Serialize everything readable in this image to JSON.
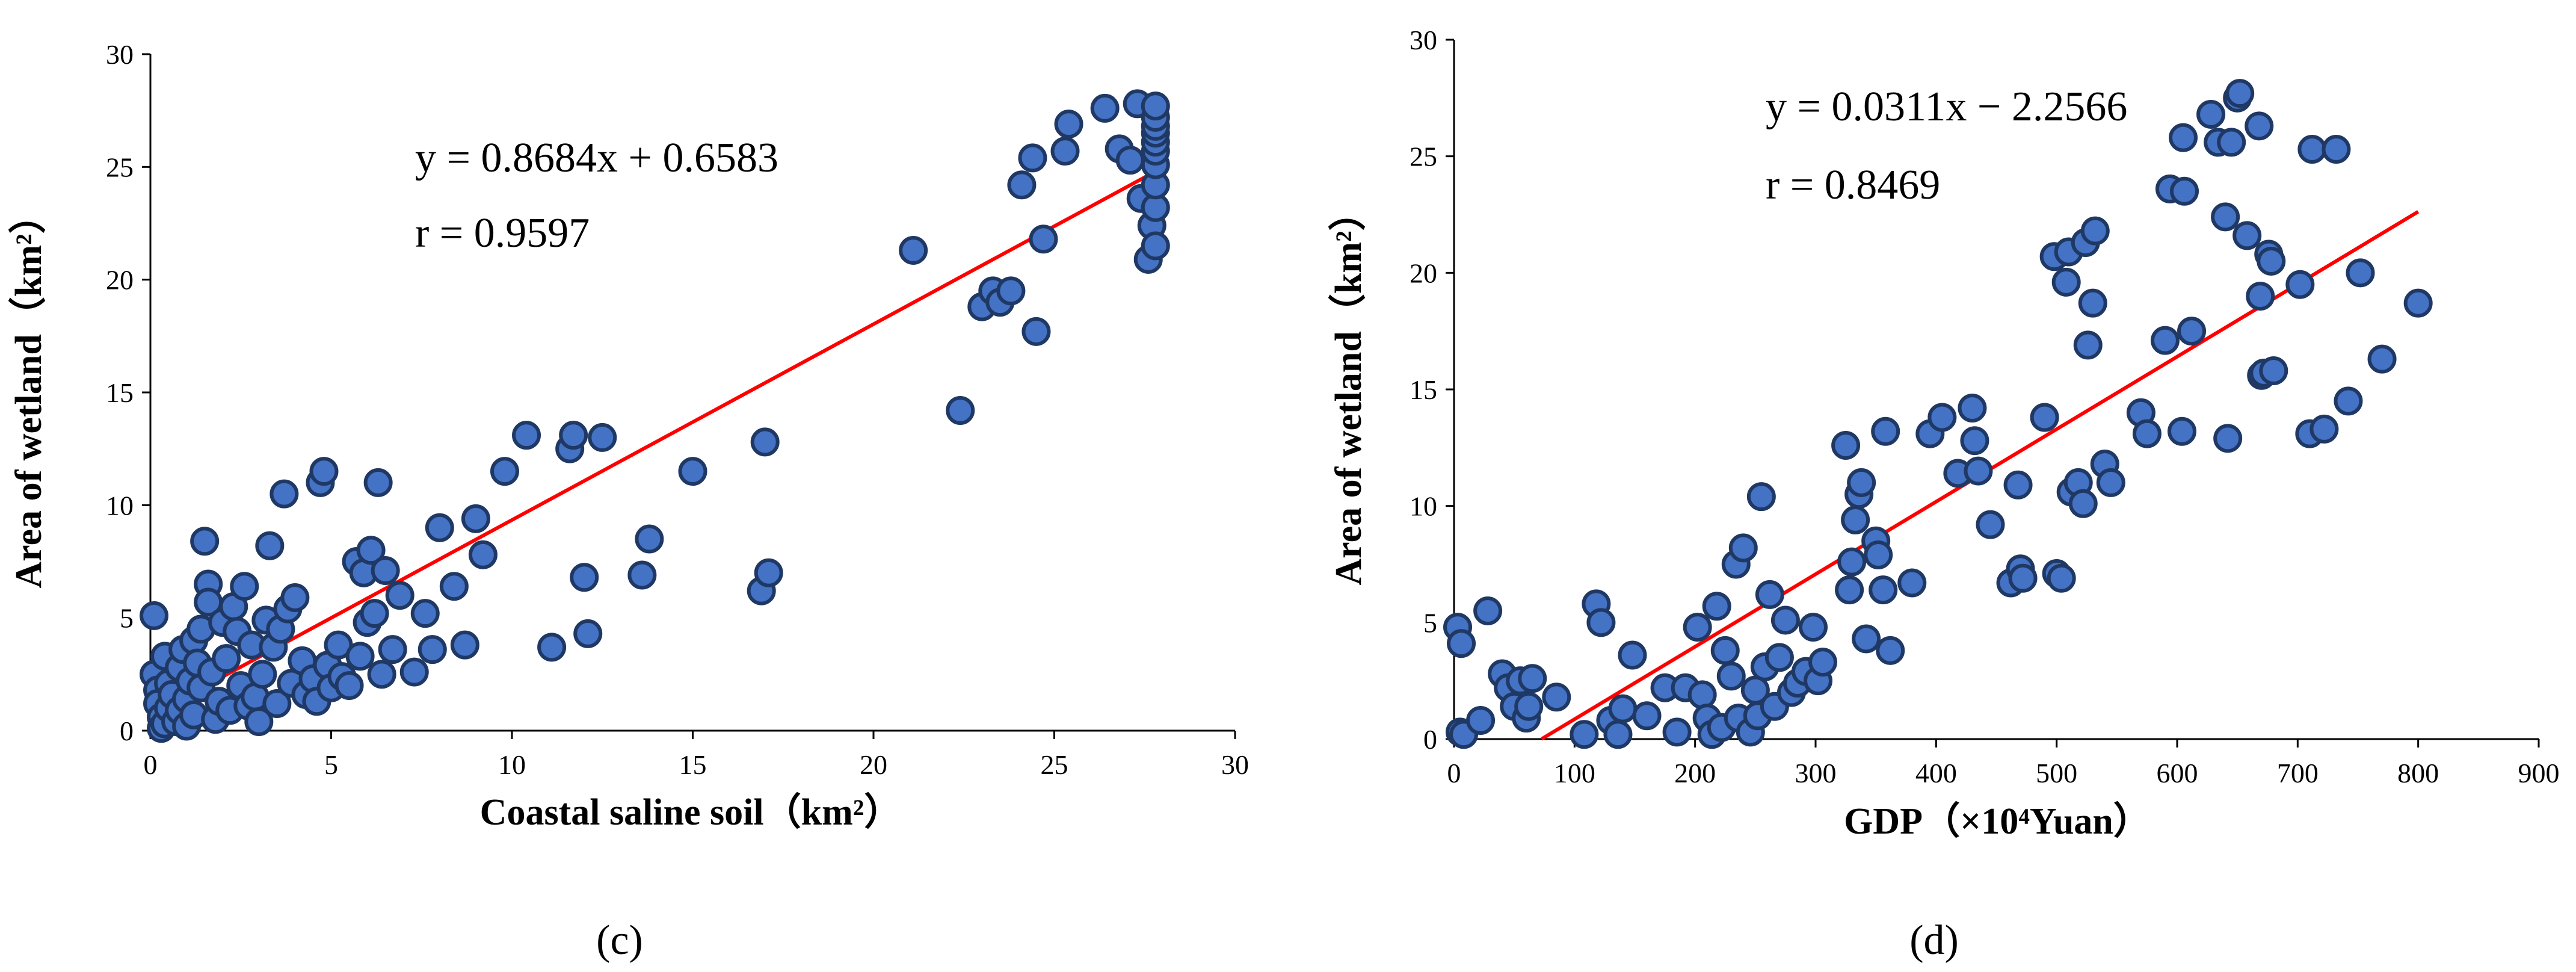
{
  "chart_data": [
    {
      "type": "scatter",
      "panel_label": "(c)",
      "xlabel": "Coastal saline soil（km²）",
      "ylabel": "Area of wetland（km²）",
      "xlim": [
        0,
        30
      ],
      "ylim": [
        0,
        30
      ],
      "xticks": [
        "0",
        "5",
        "10",
        "15",
        "20",
        "25",
        "30"
      ],
      "yticks": [
        "0",
        "5",
        "10",
        "15",
        "20",
        "25",
        "30"
      ],
      "equation": "y = 0.8684x + 0.6583",
      "r_text": "r = 0.9597",
      "trendline": {
        "slope": 0.8684,
        "intercept": 0.6583,
        "x_range": [
          0,
          27.9
        ]
      },
      "colors": {
        "marker_fill": "#4472C4",
        "marker_edge": "#1F3864",
        "trendline": "#FF0000"
      },
      "points": [
        [
          0.1,
          5.1
        ],
        [
          0.1,
          2.5
        ],
        [
          0.2,
          1.8
        ],
        [
          0.2,
          1.2
        ],
        [
          0.3,
          0.6
        ],
        [
          0.3,
          0.1
        ],
        [
          0.4,
          0.3
        ],
        [
          0.4,
          3.3
        ],
        [
          0.5,
          2.1
        ],
        [
          0.5,
          1.0
        ],
        [
          0.6,
          1.6
        ],
        [
          0.7,
          0.4
        ],
        [
          0.8,
          2.8
        ],
        [
          0.8,
          0.9
        ],
        [
          0.9,
          3.6
        ],
        [
          1.0,
          1.4
        ],
        [
          1.0,
          0.2
        ],
        [
          1.1,
          2.2
        ],
        [
          1.2,
          4.0
        ],
        [
          1.2,
          0.7
        ],
        [
          1.3,
          3.0
        ],
        [
          1.4,
          1.9
        ],
        [
          1.4,
          4.5
        ],
        [
          1.5,
          8.4
        ],
        [
          1.6,
          6.5
        ],
        [
          1.6,
          5.7
        ],
        [
          1.7,
          2.6
        ],
        [
          1.8,
          0.5
        ],
        [
          1.9,
          1.3
        ],
        [
          2.0,
          4.8
        ],
        [
          2.1,
          3.2
        ],
        [
          2.2,
          0.9
        ],
        [
          2.3,
          5.5
        ],
        [
          2.4,
          4.4
        ],
        [
          2.5,
          2.0
        ],
        [
          2.6,
          6.4
        ],
        [
          2.7,
          1.1
        ],
        [
          2.8,
          3.8
        ],
        [
          2.9,
          1.5
        ],
        [
          3.0,
          0.4
        ],
        [
          3.1,
          2.5
        ],
        [
          3.2,
          4.9
        ],
        [
          3.3,
          8.2
        ],
        [
          3.4,
          3.7
        ],
        [
          3.5,
          1.2
        ],
        [
          3.6,
          4.5
        ],
        [
          3.7,
          10.5
        ],
        [
          3.8,
          5.4
        ],
        [
          3.9,
          2.1
        ],
        [
          4.0,
          5.9
        ],
        [
          4.2,
          3.1
        ],
        [
          4.3,
          1.6
        ],
        [
          4.5,
          2.3
        ],
        [
          4.6,
          1.3
        ],
        [
          4.7,
          11.0
        ],
        [
          4.8,
          11.5
        ],
        [
          4.9,
          2.9
        ],
        [
          5.0,
          1.9
        ],
        [
          5.2,
          3.8
        ],
        [
          5.3,
          2.4
        ],
        [
          5.5,
          2.0
        ],
        [
          5.7,
          7.5
        ],
        [
          5.8,
          3.3
        ],
        [
          5.9,
          7.0
        ],
        [
          6.0,
          4.8
        ],
        [
          6.1,
          8.0
        ],
        [
          6.2,
          5.2
        ],
        [
          6.3,
          11.0
        ],
        [
          6.4,
          2.5
        ],
        [
          6.5,
          7.1
        ],
        [
          6.7,
          3.6
        ],
        [
          6.9,
          6.0
        ],
        [
          7.3,
          2.6
        ],
        [
          7.6,
          5.2
        ],
        [
          7.8,
          3.6
        ],
        [
          8.0,
          9.0
        ],
        [
          8.4,
          6.4
        ],
        [
          8.7,
          3.8
        ],
        [
          9.0,
          9.4
        ],
        [
          9.2,
          7.8
        ],
        [
          9.8,
          11.5
        ],
        [
          10.4,
          13.1
        ],
        [
          11.1,
          3.7
        ],
        [
          11.6,
          12.5
        ],
        [
          11.7,
          13.1
        ],
        [
          12.0,
          6.8
        ],
        [
          12.1,
          4.3
        ],
        [
          12.5,
          13.0
        ],
        [
          13.6,
          6.9
        ],
        [
          13.8,
          8.5
        ],
        [
          15.0,
          11.5
        ],
        [
          16.9,
          6.2
        ],
        [
          17.0,
          12.8
        ],
        [
          17.1,
          7.0
        ],
        [
          21.1,
          21.3
        ],
        [
          22.4,
          14.2
        ],
        [
          23.0,
          18.8
        ],
        [
          23.3,
          19.5
        ],
        [
          23.5,
          19.0
        ],
        [
          23.8,
          19.5
        ],
        [
          24.1,
          24.2
        ],
        [
          24.4,
          25.4
        ],
        [
          24.5,
          17.7
        ],
        [
          24.7,
          21.8
        ],
        [
          25.3,
          25.7
        ],
        [
          25.4,
          26.9
        ],
        [
          26.4,
          27.6
        ],
        [
          26.8,
          25.8
        ],
        [
          27.1,
          25.3
        ],
        [
          27.3,
          27.8
        ],
        [
          27.4,
          23.6
        ],
        [
          27.6,
          20.9
        ],
        [
          27.7,
          22.4
        ],
        [
          27.8,
          21.5
        ],
        [
          27.8,
          23.2
        ],
        [
          27.8,
          24.2
        ],
        [
          27.8,
          25.1
        ],
        [
          27.8,
          25.7
        ],
        [
          27.8,
          26.1
        ],
        [
          27.8,
          26.5
        ],
        [
          27.8,
          26.8
        ],
        [
          27.8,
          27.2
        ],
        [
          27.8,
          27.7
        ]
      ]
    },
    {
      "type": "scatter",
      "panel_label": "(d)",
      "xlabel": "GDP（×10⁴Yuan）",
      "ylabel": "Area of wetland（km²）",
      "xlim": [
        0,
        900
      ],
      "ylim": [
        0,
        30
      ],
      "xticks": [
        "0",
        "100",
        "200",
        "300",
        "400",
        "500",
        "600",
        "700",
        "800",
        "900"
      ],
      "yticks": [
        "0",
        "5",
        "10",
        "15",
        "20",
        "25",
        "30"
      ],
      "equation": "y = 0.0311x − 2.2566",
      "r_text": "r = 0.8469",
      "trendline": {
        "slope": 0.0311,
        "intercept": -2.2566,
        "x_range": [
          72.6,
          800
        ]
      },
      "colors": {
        "marker_fill": "#4472C4",
        "marker_edge": "#1F3864",
        "trendline": "#FF0000"
      },
      "points": [
        [
          3,
          4.8
        ],
        [
          6,
          4.1
        ],
        [
          5,
          0.3
        ],
        [
          8,
          0.2
        ],
        [
          22,
          0.8
        ],
        [
          28,
          5.5
        ],
        [
          40,
          2.8
        ],
        [
          45,
          2.2
        ],
        [
          50,
          1.4
        ],
        [
          55,
          2.5
        ],
        [
          60,
          0.9
        ],
        [
          62,
          1.4
        ],
        [
          65,
          2.6
        ],
        [
          85,
          1.8
        ],
        [
          108,
          0.2
        ],
        [
          118,
          5.8
        ],
        [
          122,
          5.0
        ],
        [
          130,
          0.8
        ],
        [
          136,
          0.2
        ],
        [
          140,
          1.3
        ],
        [
          148,
          3.6
        ],
        [
          160,
          1.0
        ],
        [
          175,
          2.2
        ],
        [
          185,
          0.3
        ],
        [
          192,
          2.2
        ],
        [
          202,
          4.8
        ],
        [
          206,
          1.9
        ],
        [
          210,
          0.9
        ],
        [
          214,
          0.2
        ],
        [
          218,
          5.7
        ],
        [
          222,
          0.5
        ],
        [
          225,
          3.8
        ],
        [
          230,
          2.7
        ],
        [
          234,
          7.5
        ],
        [
          236,
          0.9
        ],
        [
          240,
          8.2
        ],
        [
          246,
          0.3
        ],
        [
          250,
          2.1
        ],
        [
          252,
          1.0
        ],
        [
          255,
          10.4
        ],
        [
          258,
          3.1
        ],
        [
          262,
          6.2
        ],
        [
          266,
          1.4
        ],
        [
          270,
          3.5
        ],
        [
          275,
          5.1
        ],
        [
          280,
          2.0
        ],
        [
          285,
          2.4
        ],
        [
          292,
          2.9
        ],
        [
          298,
          4.8
        ],
        [
          302,
          2.5
        ],
        [
          306,
          3.3
        ],
        [
          325,
          12.6
        ],
        [
          328,
          6.4
        ],
        [
          330,
          7.6
        ],
        [
          333,
          9.4
        ],
        [
          336,
          10.5
        ],
        [
          338,
          11.0
        ],
        [
          342,
          4.3
        ],
        [
          350,
          8.5
        ],
        [
          352,
          7.9
        ],
        [
          356,
          6.4
        ],
        [
          358,
          13.2
        ],
        [
          362,
          3.8
        ],
        [
          380,
          6.7
        ],
        [
          395,
          13.1
        ],
        [
          405,
          13.8
        ],
        [
          418,
          11.4
        ],
        [
          430,
          14.2
        ],
        [
          432,
          12.8
        ],
        [
          435,
          11.5
        ],
        [
          445,
          9.2
        ],
        [
          462,
          6.7
        ],
        [
          468,
          10.9
        ],
        [
          470,
          7.3
        ],
        [
          472,
          6.9
        ],
        [
          490,
          13.8
        ],
        [
          498,
          20.7
        ],
        [
          500,
          7.1
        ],
        [
          504,
          6.9
        ],
        [
          508,
          19.6
        ],
        [
          510,
          20.9
        ],
        [
          512,
          10.6
        ],
        [
          518,
          11.0
        ],
        [
          522,
          10.1
        ],
        [
          524,
          21.3
        ],
        [
          526,
          16.9
        ],
        [
          530,
          18.7
        ],
        [
          532,
          21.8
        ],
        [
          540,
          11.8
        ],
        [
          545,
          11.0
        ],
        [
          570,
          14.0
        ],
        [
          575,
          13.1
        ],
        [
          590,
          17.1
        ],
        [
          594,
          23.6
        ],
        [
          604,
          13.2
        ],
        [
          605,
          25.8
        ],
        [
          606,
          23.5
        ],
        [
          612,
          17.5
        ],
        [
          628,
          26.8
        ],
        [
          634,
          25.6
        ],
        [
          640,
          22.4
        ],
        [
          642,
          12.9
        ],
        [
          645,
          25.6
        ],
        [
          650,
          27.5
        ],
        [
          652,
          27.7
        ],
        [
          658,
          21.6
        ],
        [
          668,
          26.3
        ],
        [
          669,
          19.0
        ],
        [
          670,
          15.6
        ],
        [
          672,
          15.7
        ],
        [
          676,
          20.8
        ],
        [
          678,
          20.5
        ],
        [
          680,
          15.8
        ],
        [
          702,
          19.5
        ],
        [
          710,
          13.1
        ],
        [
          712,
          25.3
        ],
        [
          722,
          13.3
        ],
        [
          732,
          25.3
        ],
        [
          742,
          14.5
        ],
        [
          752,
          20.0
        ],
        [
          770,
          16.3
        ],
        [
          800,
          18.7
        ]
      ]
    }
  ]
}
